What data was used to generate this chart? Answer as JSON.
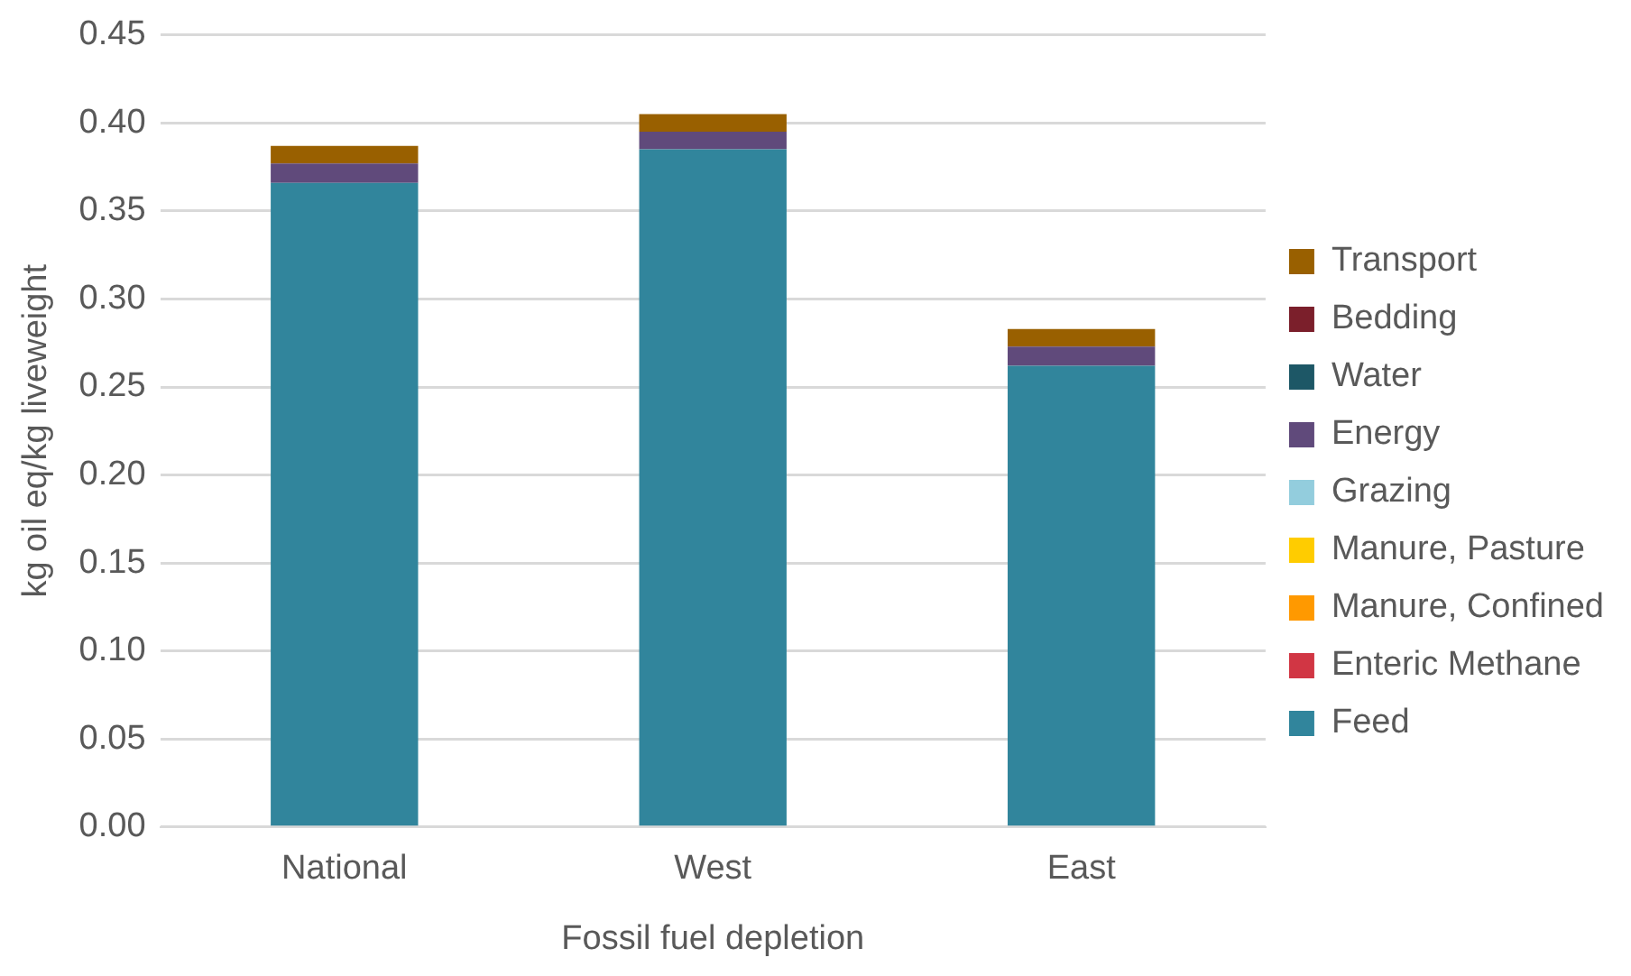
{
  "chart_data": {
    "type": "bar",
    "stacked": true,
    "categories": [
      "National",
      "West",
      "East"
    ],
    "xlabel": "Fossil fuel depletion",
    "ylabel": "kg oil eq/kg liveweight",
    "ylim": [
      0,
      0.45
    ],
    "yticks": [
      {
        "value": 0,
        "label": "0.00"
      },
      {
        "value": 0.05,
        "label": "0.05"
      },
      {
        "value": 0.1,
        "label": "0.10"
      },
      {
        "value": 0.15,
        "label": "0.15"
      },
      {
        "value": 0.2,
        "label": "0.20"
      },
      {
        "value": 0.25,
        "label": "0.25"
      },
      {
        "value": 0.3,
        "label": "0.30"
      },
      {
        "value": 0.35,
        "label": "0.35"
      },
      {
        "value": 0.4,
        "label": "0.40"
      },
      {
        "value": 0.45,
        "label": "0.45"
      }
    ],
    "grid": "y",
    "legend": "right",
    "series": [
      {
        "name": "Feed",
        "color": "#31859c",
        "values": [
          0.366,
          0.385,
          0.262
        ]
      },
      {
        "name": "Enteric Methane",
        "color": "#d13644",
        "values": [
          0,
          0,
          0
        ]
      },
      {
        "name": "Manure, Confined",
        "color": "#ff9900",
        "values": [
          0,
          0,
          0
        ]
      },
      {
        "name": "Manure, Pasture",
        "color": "#ffcc00",
        "values": [
          0,
          0,
          0
        ]
      },
      {
        "name": "Grazing",
        "color": "#93cddd",
        "values": [
          0,
          0,
          0
        ]
      },
      {
        "name": "Energy",
        "color": "#604a7b",
        "values": [
          0.011,
          0.01,
          0.011
        ]
      },
      {
        "name": "Water",
        "color": "#1d5766",
        "values": [
          0,
          0,
          0
        ]
      },
      {
        "name": "Bedding",
        "color": "#7b1f2b",
        "values": [
          0,
          0,
          0
        ]
      },
      {
        "name": "Transport",
        "color": "#996000",
        "values": [
          0.01,
          0.01,
          0.01
        ]
      }
    ]
  }
}
